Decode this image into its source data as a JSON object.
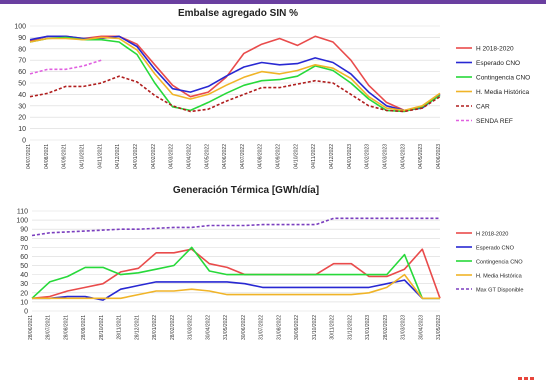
{
  "chart_data": [
    {
      "type": "line",
      "title": "Embalse agregado SIN %",
      "ylim": [
        0,
        100
      ],
      "yticks": [
        0,
        10,
        20,
        30,
        40,
        50,
        60,
        70,
        80,
        90,
        100
      ],
      "grid": true,
      "legend_position": "right",
      "x": [
        "04/07/2021",
        "04/08/2021",
        "04/09/2021",
        "04/10/2021",
        "04/11/2021",
        "04/12/2021",
        "04/01/2022",
        "04/02/2022",
        "04/03/2022",
        "04/04/2022",
        "04/05/2022",
        "04/06/2022",
        "04/07/2022",
        "04/08/2022",
        "04/09/2022",
        "04/10/2022",
        "04/11/2022",
        "04/12/2022",
        "04/01/2023",
        "04/02/2023",
        "04/03/2023",
        "04/04/2023",
        "04/05/2023",
        "04/06/2023"
      ],
      "series": [
        {
          "name": "H 2018-2020",
          "color": "#e94b4b",
          "dash": "solid",
          "values": [
            87,
            91,
            91,
            89,
            91,
            91,
            84,
            66,
            48,
            38,
            42,
            55,
            76,
            84,
            89,
            83,
            91,
            86,
            70,
            48,
            33,
            26,
            29,
            40
          ]
        },
        {
          "name": "Esperado CNO",
          "color": "#2828d2",
          "dash": "solid",
          "values": [
            88,
            91,
            91,
            89,
            89,
            91,
            82,
            62,
            45,
            42,
            47,
            56,
            64,
            68,
            66,
            67,
            72,
            68,
            58,
            42,
            30,
            26,
            28,
            40
          ]
        },
        {
          "name": "Contingencia CNO",
          "color": "#27d93a",
          "dash": "solid",
          "values": [
            86,
            89,
            90,
            88,
            88,
            86,
            75,
            50,
            29,
            26,
            33,
            41,
            48,
            52,
            53,
            56,
            65,
            61,
            50,
            36,
            26,
            25,
            29,
            39
          ]
        },
        {
          "name": "H. Media Histórica",
          "color": "#f0b428",
          "dash": "solid",
          "values": [
            86,
            89,
            89,
            88,
            90,
            89,
            79,
            58,
            40,
            36,
            40,
            48,
            55,
            60,
            58,
            61,
            66,
            63,
            54,
            38,
            28,
            26,
            30,
            41
          ]
        },
        {
          "name": "CAR",
          "color": "#b01e1e",
          "dash": "dashed",
          "values": [
            38,
            41,
            47,
            47,
            50,
            56,
            51,
            39,
            30,
            25,
            27,
            34,
            40,
            46,
            46,
            49,
            52,
            50,
            40,
            30,
            26,
            25,
            28,
            38
          ]
        },
        {
          "name": "SENDA REF",
          "color": "#e060e0",
          "dash": "dashed",
          "values": [
            58,
            62,
            62,
            65,
            70,
            null,
            null,
            null,
            null,
            null,
            null,
            null,
            null,
            null,
            null,
            null,
            null,
            null,
            null,
            null,
            null,
            null,
            null,
            null
          ]
        }
      ]
    },
    {
      "type": "line",
      "title": "Generación Térmica [GWh/día]",
      "ylim": [
        0,
        110
      ],
      "yticks": [
        0,
        10,
        20,
        30,
        40,
        50,
        60,
        70,
        80,
        90,
        100,
        110
      ],
      "grid": true,
      "legend_position": "right",
      "x": [
        "28/06/2021",
        "28/07/2021",
        "28/08/2021",
        "28/09/2021",
        "28/10/2021",
        "28/11/2021",
        "28/12/2021",
        "28/01/2022",
        "28/02/2022",
        "31/03/2022",
        "30/04/2022",
        "31/05/2022",
        "30/06/2022",
        "31/07/2022",
        "31/08/2022",
        "30/09/2022",
        "31/10/2022",
        "30/11/2022",
        "31/12/2022",
        "31/01/2023",
        "28/02/2023",
        "31/03/2023",
        "30/04/2023",
        "31/05/2023"
      ],
      "series": [
        {
          "name": "H 2018-2020",
          "color": "#e94b4b",
          "dash": "solid",
          "values": [
            14,
            16,
            22,
            26,
            30,
            43,
            47,
            64,
            64,
            68,
            52,
            48,
            40,
            40,
            40,
            40,
            40,
            52,
            52,
            38,
            38,
            46,
            68,
            14
          ]
        },
        {
          "name": "Esperado CNO",
          "color": "#2828d2",
          "dash": "solid",
          "values": [
            14,
            14,
            16,
            16,
            12,
            24,
            28,
            32,
            32,
            32,
            32,
            32,
            30,
            26,
            26,
            26,
            26,
            26,
            26,
            26,
            30,
            34,
            14,
            14
          ]
        },
        {
          "name": "Contingencia CNO",
          "color": "#27d93a",
          "dash": "solid",
          "values": [
            14,
            32,
            38,
            48,
            48,
            40,
            42,
            46,
            50,
            70,
            44,
            40,
            40,
            40,
            40,
            40,
            40,
            40,
            40,
            40,
            40,
            62,
            14,
            14
          ]
        },
        {
          "name": "H. Media Histórica",
          "color": "#f0b428",
          "dash": "solid",
          "values": [
            14,
            14,
            14,
            14,
            14,
            14,
            18,
            22,
            22,
            24,
            22,
            18,
            18,
            18,
            18,
            18,
            18,
            18,
            18,
            20,
            26,
            40,
            14,
            14
          ]
        },
        {
          "name": "Max GT Disponible",
          "color": "#7b3fbf",
          "dash": "dashed",
          "values": [
            83,
            86,
            87,
            88,
            89,
            90,
            90,
            91,
            92,
            92,
            94,
            94,
            94,
            95,
            95,
            95,
            95,
            102,
            102,
            102,
            102,
            102,
            102,
            102
          ]
        }
      ]
    }
  ]
}
